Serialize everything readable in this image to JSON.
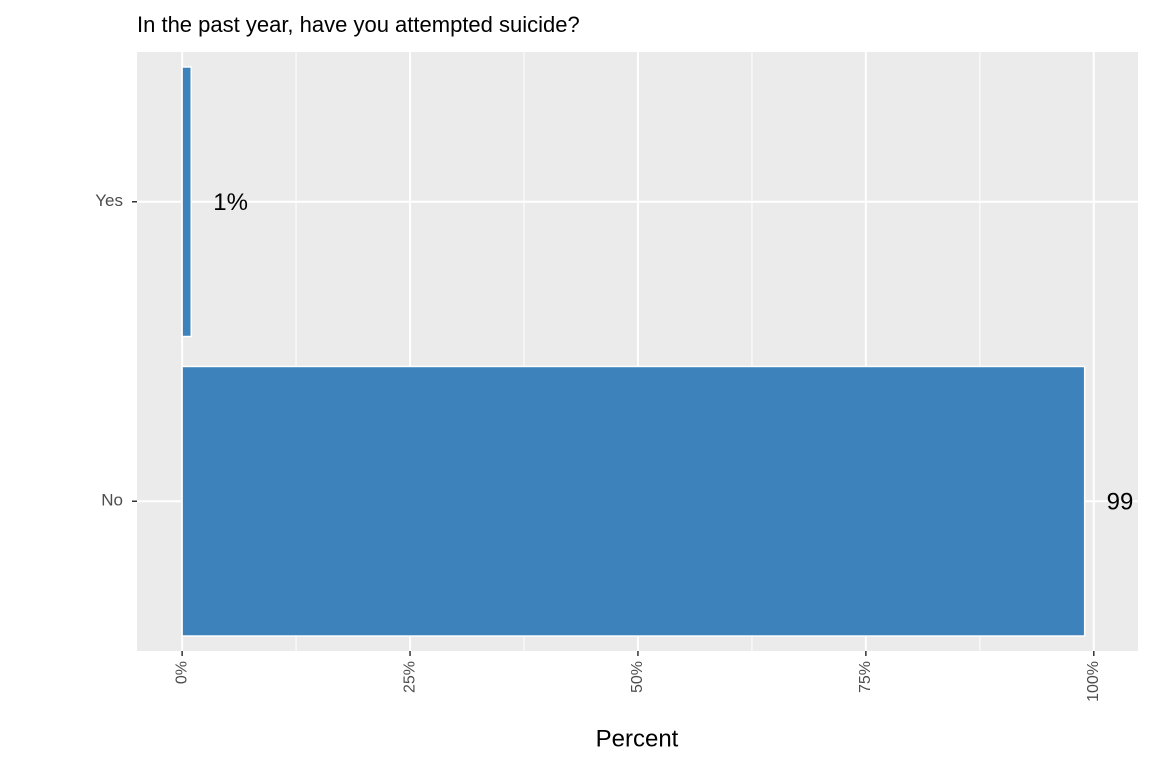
{
  "chart_data": {
    "type": "bar",
    "orientation": "horizontal",
    "title": "In the past year, have you attempted suicide?",
    "x_label": "Percent",
    "categories": [
      "Yes",
      "No"
    ],
    "values": [
      1,
      99
    ],
    "value_labels": [
      "1%",
      "99"
    ],
    "color": "#377eb8",
    "xlim": [
      -4.95,
      104.85
    ],
    "xticks": [
      {
        "value": 0,
        "label": "0%"
      },
      {
        "value": 25,
        "label": "25%"
      },
      {
        "value": 50,
        "label": "50%"
      },
      {
        "value": 75,
        "label": "75%"
      },
      {
        "value": 100,
        "label": "100%"
      }
    ],
    "minor_xticks": [
      12.5,
      37.5,
      62.5,
      87.5
    ],
    "grid": true
  }
}
